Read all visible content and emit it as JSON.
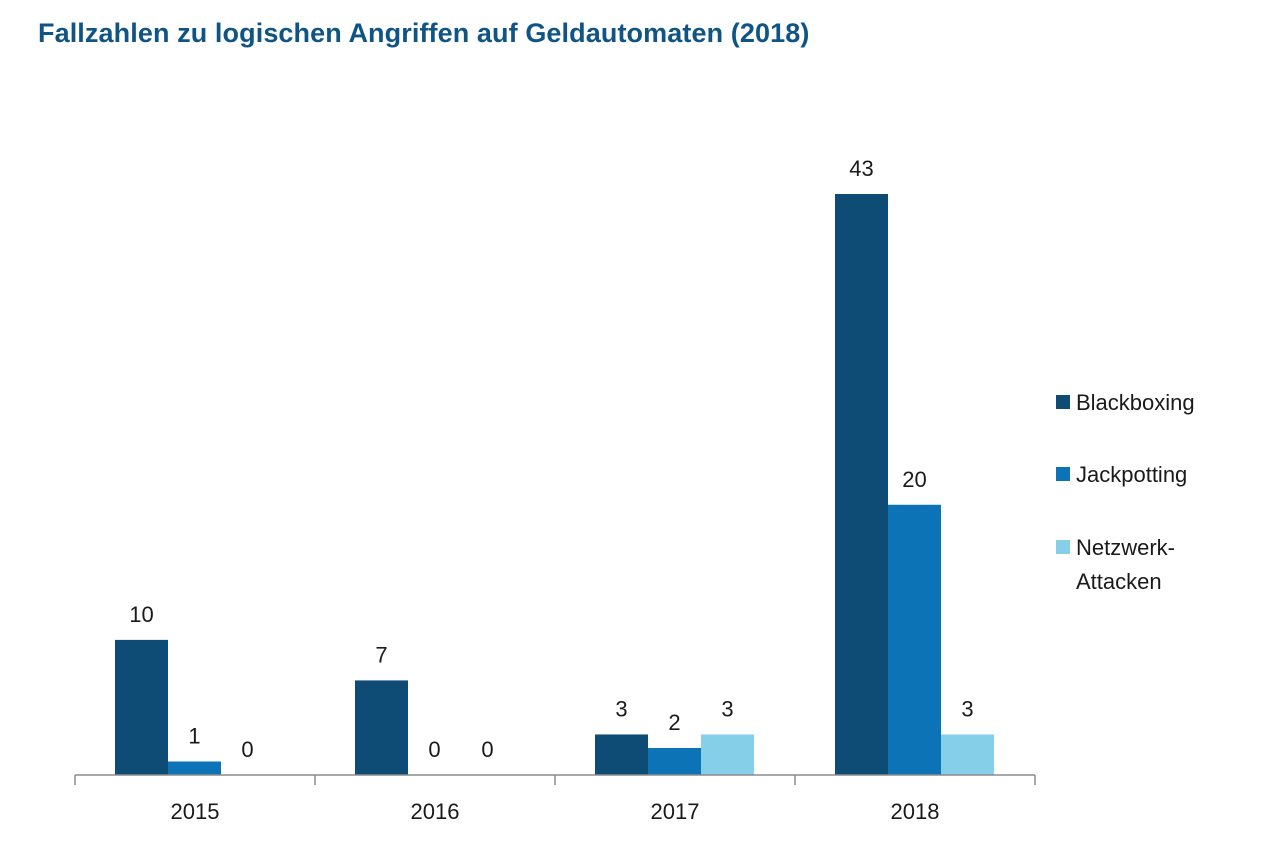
{
  "chart_data": {
    "type": "bar",
    "title": "Fallzahlen zu logischen Angriffen auf Geldautomaten (2018)",
    "xlabel": "",
    "ylabel": "",
    "categories": [
      "2015",
      "2016",
      "2017",
      "2018"
    ],
    "series": [
      {
        "name": "Blackboxing",
        "color": "#0f4c75",
        "values": [
          10,
          7,
          3,
          43
        ]
      },
      {
        "name": "Jackpotting",
        "color": "#0c74b6",
        "values": [
          1,
          0,
          2,
          20
        ]
      },
      {
        "name": "Netzwerk-Attacken",
        "legend_lines": [
          "Netzwerk-",
          "Attacken"
        ],
        "color": "#86cfe9",
        "values": [
          0,
          0,
          3,
          3
        ]
      }
    ],
    "ylim": [
      0,
      45
    ],
    "grid": false,
    "legend_position": "right"
  }
}
